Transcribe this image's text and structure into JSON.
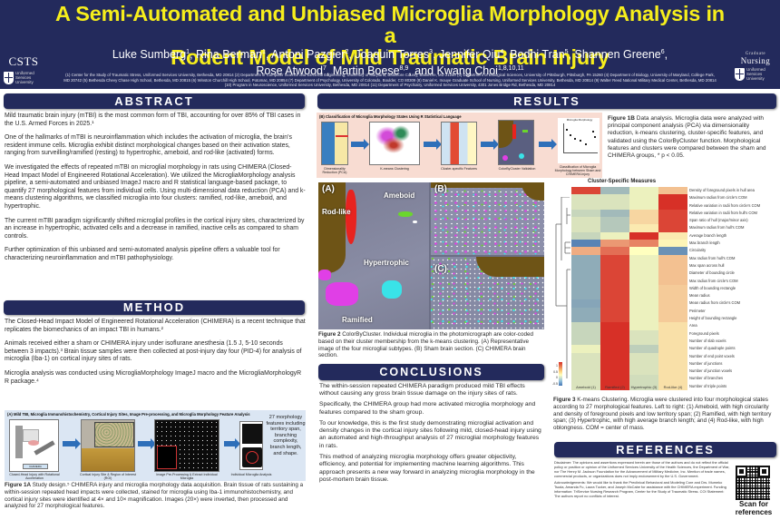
{
  "header": {
    "title_line1": "A Semi-Automated and Unbiased Microglia Morphology Analysis in a",
    "title_line2": "Rodent Model of Mild Traumatic Brain Injury",
    "authors": [
      {
        "name": "Luke Sumberg",
        "sup": "1"
      },
      {
        "name": "Rina Berman",
        "sup": "1"
      },
      {
        "name": "Antoni Pazgier",
        "sup": "2"
      },
      {
        "name": "Joaquin Torres",
        "sup": "3"
      },
      {
        "name": "Jennifer Qiu",
        "sup": "4"
      },
      {
        "name": "Bodhi Tran",
        "sup": "5"
      },
      {
        "name": "Shannen Greene",
        "sup": "6"
      },
      {
        "name": "Rose Atwood",
        "sup": "7"
      },
      {
        "name": "Martin Boese",
        "sup": "8,9"
      },
      {
        "name": "and Kwang Choi",
        "sup": "1,8,10,11"
      }
    ],
    "affiliations": "(1) Center for the Study of Traumatic Stress, Uniformed Services University, Bethesda, MD 20814 (2) Department of Computer Science and Electrical Engineering, University of Maryland, Baltimore County, Baltimore, MD 21250 (3) Department of Biological Sciences, University of Pittsburgh, Pittsburgh, PA 15260 (4) Department of Biology, University of Maryland, College Park, MD 20742 (5) Bethesda Chevy Chase High School, Bethesda, MD 20815 (6) Winston Churchill High School, Potomac, MD 20854 (7) Department of Psychology, University of Colorado, Boulder, CO 80309 (8) Daniel K. Inouye Graduate School of Nursing, Uniformed Services University, Bethesda, MD 20814 (9) Walter Reed National Military Medical Center, Bethesda, MD 20814 (10) Program in Neuroscience, Uniformed Services University, Bethesda, MD 20814 (11) Department of Psychiatry, Uniformed Services University, 4301 Jones Bridge Rd, Bethesda, MD 20814",
    "logo_left": {
      "name": "CSTS",
      "sub": [
        "Uniformed",
        "Services",
        "University"
      ]
    },
    "logo_right": {
      "top": "Graduate",
      "name": "Nursing",
      "sub": [
        "Uniformed",
        "Services",
        "University"
      ]
    }
  },
  "sections": {
    "abstract": "ABSTRACT",
    "method": "METHOD",
    "results": "RESULTS",
    "conclusions": "CONCLUSIONS",
    "references": "REFERENCES"
  },
  "abstract": {
    "paragraphs": [
      "Mild traumatic brain injury (mTBI) is the most common form of TBI, accounting for over 85% of TBI cases in the U.S. Armed Forces in 2025.¹",
      "One of the hallmarks of mTBI is neuroinflammation which includes the activation of microglia, the brain's resident immune cells. Microglia exhibit distinct morphological changes based on their activation states, ranging from surveilling/ramified (resting) to hypertrophic, ameboid, and rod-like (activated) forms.",
      "We investigated the effects of repeated mTBI on microglial morphology in rats using CHIMERA (Closed-Head Impact Model of Engineered Rotational Acceleration). We utilized the MicrogliaMorphology analysis pipeline, a semi-automated and unbiased ImageJ macro and R statistical language-based package, to quantify 27 morphological features from individual cells. Using multi-dimensional data reduction (PCA) and k-means clustering algorithms, we classified microglia into four clusters: ramified, rod-like, ameboid, and hypertrophic.",
      "The current mTBI paradigm significantly shifted microglial profiles in the cortical injury sites, characterized by an increase in hypertrophic, activated cells and a decrease in ramified, inactive cells as compared to sham controls.",
      "Further optimization of this unbiased and semi-automated analysis pipeline offers a valuable tool for characterizing neuroinflammation and mTBI pathophysiology."
    ]
  },
  "method": {
    "paragraphs": [
      "The Closed-Head Impact Model of Engineered Rotational Acceleration (CHIMERA) is a recent technique that replicates the biomechanics of an impact TBI in humans.²",
      "Animals received either a sham or CHIMERA injury under isoflurane anesthesia (1.5 J, 5-10 seconds between 3 impacts).³ Brain tissue samples were then collected at post-injury day four (PID-4) for analysis of microglia (Iba-1) on cortical injury sites of rats.",
      "Microglia analysis was conducted using MicrogliaMorphology ImageJ macro and the MicrogliaMorphologyR R package.⁴"
    ]
  },
  "figure1a": {
    "heading": "(A) Mild TBI, Microglia Immunohistochemistry, Cortical Injury Sites, Image Pre-processing, and Microglia Morphology Feature Analysis",
    "steps": [
      "Closed-Head Injury with Rotational Acceleration",
      "Cortical Injury Site & Region of Interest (ROI)",
      "Image Pre-Processing & Extract Individual Microglia",
      "Individual Microglia Analysis"
    ],
    "device_label": "CHIMERA",
    "features_text": "27 morphology features including territory span, branching complexity, branch length, and shape.",
    "caption_label": "Figure 1A",
    "caption": " Study design.⁵ CHIMERA injury and microglia morphology data acquisition. Brain tissue of rats sustaining a within-session repeated head impacts were collected, stained for microglia using Iba-1 immunohistochemistry, and cortical injury sites were identified at 4× and 10× magnification. Images (20×) were inverted, then processed and analyzed for 27 morphological features."
  },
  "figure1b": {
    "heading": "(B) Classification of Microglia Morphology States Using R Statistical Language",
    "steps": [
      "Dimensionality Reduction (PCA)",
      "K-means Clustering",
      "Cluster-specific Features",
      "ColorByCluster Validation",
      "Classification of Microglia Morphology between Sham and CHIMERA Injury"
    ],
    "mini_chart_title": "Microglia Morphology",
    "caption_label": "Figure 1B",
    "caption": " Data analysis. Microglia data were analyzed with principal component analysis (PCA) via dimensionality reduction, k-means clustering, cluster-specific features, and validated using the ColorByCluster function. Morphological features and clusters were compared between the sham and CHIMERA groups, * p < 0.05."
  },
  "figure2": {
    "panel_labels": [
      "(A)",
      "(B)",
      "(C)"
    ],
    "cell_labels": {
      "rodlike": "Rod-like",
      "ameboid": "Ameboid",
      "hypertrophic": "Hypertrophic",
      "ramified": "Ramified"
    },
    "caption_label": "Figure 2",
    "caption": " ColorByCluster. Individual microglia in the photomicrograph are color-coded based on their cluster membership from the k-means clustering. (A) Representative image of the four microglial subtypes. (B) Sham brain section. (C) CHIMERA brain section.",
    "colors": {
      "rodlike": "#e8231f",
      "ameboid": "#6bd62c",
      "hypertrophic": "#39e3e8",
      "ramified": "#e03fe6",
      "brown": "#6e5416"
    }
  },
  "figure3": {
    "caption_label": "Figure 3",
    "caption": " K-means Clustering. Microglia were clustered into four morphological states according to 27 morphological features. Left to right: (1) Ameboid, with high circularity and density of foreground pixels and low territory span; (2) Ramified, with high territory span; (3) Hypertrophic, with high average branch length; and (4) Rod-like, with high oblongness. COM = center of mass."
  },
  "chart_data": {
    "type": "heatmap",
    "title": "Cluster-Specific Measures",
    "columns": [
      "Ameboid (1)",
      "Ramified (2)",
      "Hypertrophic (3)",
      "Rod-like (4)"
    ],
    "rows": [
      "Density of foreground pixels in hull area",
      "Maximum radius from circle's COM",
      "Relative variation in radii from circle's COM",
      "Relative variation in radii from hull's COM",
      "Span ratio of hull (major/minor axis)",
      "Maximum radius from hull's COM",
      "Average branch length",
      "Max branch length",
      "Circularity",
      "Max radius from hull's COM",
      "Max span across hull",
      "Diameter of bounding circle",
      "Max radius from circle's COM",
      "Width of bounding rectangle",
      "Mean radius",
      "Mean radius from circle's COM",
      "Perimeter",
      "Height of bounding rectangle",
      "Area",
      "Foreground pixels",
      "Number of slab voxels",
      "Number of quadruple points",
      "Number of end point voxels",
      "Number of junctions",
      "Number of junction voxels",
      "Number of branches",
      "Number of triple points"
    ],
    "values": [
      [
        0.9,
        -0.5,
        -0.1,
        0.3
      ],
      [
        -0.2,
        -0.2,
        -0.1,
        1.0
      ],
      [
        -0.2,
        -0.2,
        -0.1,
        1.0
      ],
      [
        -0.3,
        -0.5,
        0.2,
        0.9
      ],
      [
        -0.2,
        -0.4,
        0.2,
        0.9
      ],
      [
        -0.2,
        -0.4,
        0.1,
        0.9
      ],
      [
        -0.3,
        -0.1,
        1.0,
        0.1
      ],
      [
        -0.9,
        0.5,
        0.6,
        0.05
      ],
      [
        0.4,
        0.7,
        0.0,
        -0.8
      ],
      [
        -0.6,
        0.9,
        -0.1,
        0.3
      ],
      [
        -0.6,
        0.9,
        -0.1,
        0.3
      ],
      [
        -0.6,
        0.9,
        -0.1,
        0.3
      ],
      [
        -0.6,
        0.9,
        -0.1,
        0.3
      ],
      [
        -0.6,
        0.9,
        -0.1,
        0.25
      ],
      [
        -0.6,
        0.9,
        -0.1,
        0.25
      ],
      [
        -0.65,
        0.9,
        -0.1,
        0.25
      ],
      [
        -0.6,
        0.9,
        -0.1,
        0.25
      ],
      [
        -0.6,
        0.9,
        -0.1,
        0.25
      ],
      [
        -0.3,
        1.0,
        -0.1,
        0.15
      ],
      [
        -0.3,
        1.0,
        -0.2,
        0.15
      ],
      [
        -0.3,
        1.0,
        -0.2,
        0.15
      ],
      [
        -0.1,
        1.0,
        -0.35,
        0.15
      ],
      [
        -0.2,
        1.0,
        -0.2,
        0.15
      ],
      [
        -0.2,
        1.0,
        -0.2,
        0.15
      ],
      [
        -0.2,
        1.0,
        -0.2,
        0.15
      ],
      [
        -0.2,
        1.0,
        -0.25,
        0.15
      ],
      [
        -0.2,
        1.0,
        -0.25,
        0.15
      ]
    ],
    "color_scale": {
      "min": -1,
      "max": 1,
      "ticks": [
        "1",
        "0.5",
        "0",
        "-0.5",
        "-1"
      ],
      "low": "#4575b4",
      "mid": "#ffffbf",
      "high": "#d73027"
    },
    "legend_position": "left"
  },
  "conclusions": {
    "paragraphs": [
      "The within-session repeated CHIMERA paradigm produced mild TBI effects without causing any gross brain tissue damage on the injury sites of rats.",
      "Specifically, the CHIMERA group had more activated microglia morphology and features compared to the sham group.",
      "To our knowledge, this is the first study demonstrating microglial activation and density changes in the cortical injury sites following mild, closed-head injury using an automated and high-throughput analysis of 27 microglial morphology features in rats.",
      "This method of analyzing microglia morphology offers greater objectivity, efficiency, and potential for implementing machine learning algorithms. This approach presents a new way forward in analyzing microglia morphology in the post-mortem brain tissue."
    ]
  },
  "references": {
    "disclaimer": "Disclaimer: The opinions and assertions expressed herein are those of the authors and do not reflect the official policy or position or opinion of the Uniformed Services University of the Health Sciences, the Department of War, nor The Henry M. Jackson Foundation for the Advancement of Military Medicine, Inc. Mention of trade names, commercial products, or organizations does not imply endorsement by the U.S. Government.",
    "acknowledgements": "Acknowledgements: We would like to thank the Preclinical Behavioral and Modeling Core and Drs. Mumeko Tsuda, Amanda Fu, Laura Tucker, and Joseph McCabe for assistance with the CHIMERA experiment. Funding information: TriService Nursing Research Program, Center for the Study of Traumatic Stress. COI Statement: The authors report no conflicts of interest.",
    "scan_label_1": "Scan for",
    "scan_label_2": "references"
  }
}
